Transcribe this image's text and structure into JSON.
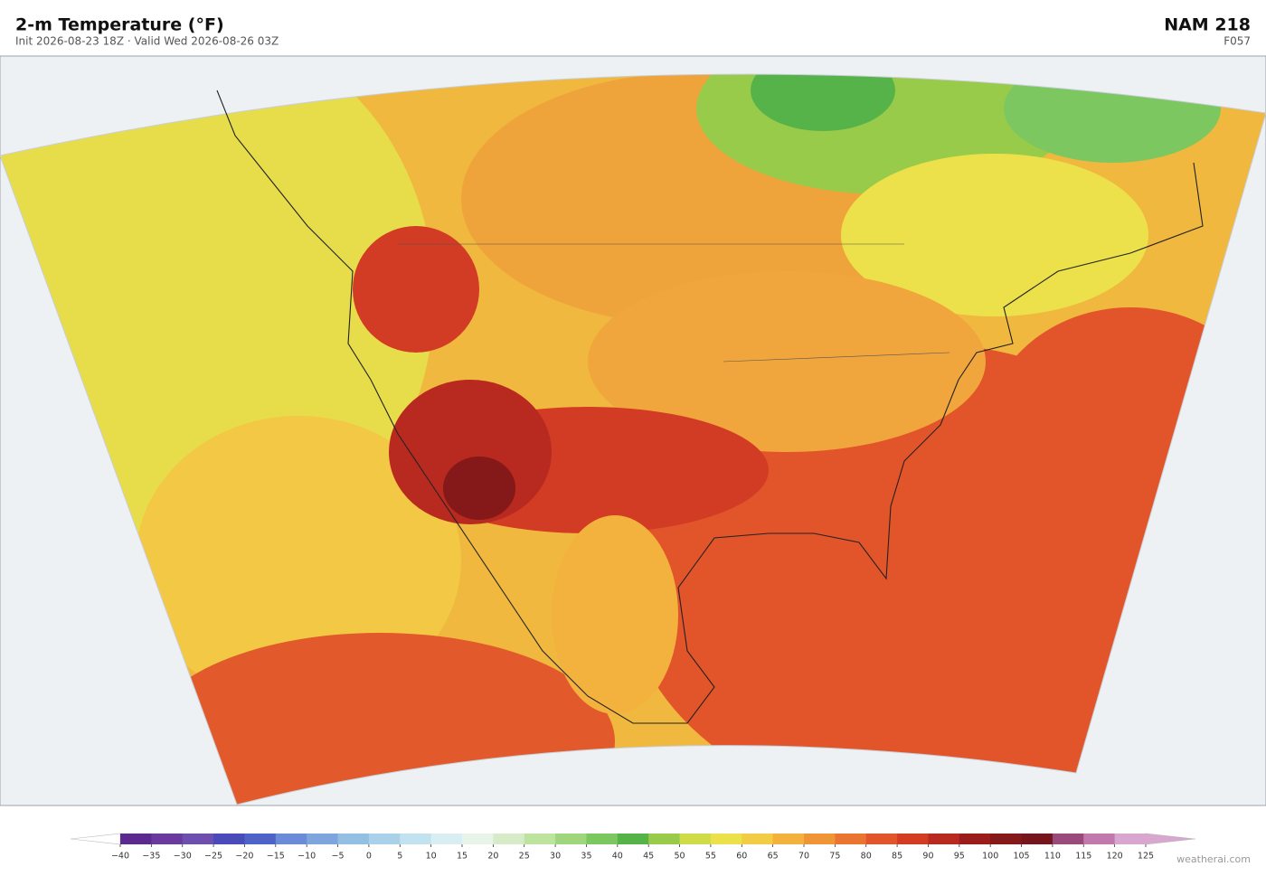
{
  "header": {
    "title": "2-m Temperature  (°F)",
    "subtitle": "Init 2026-08-23 18Z  ·  Valid Wed 2026-08-26 03Z",
    "model": "NAM  218",
    "forecast": "F057"
  },
  "colorbar": {
    "ticks": [
      {
        "value": -40,
        "label": "−40"
      },
      {
        "value": -35,
        "label": "−35"
      },
      {
        "value": -30,
        "label": "−30"
      },
      {
        "value": -25,
        "label": "−25"
      },
      {
        "value": -20,
        "label": "−20"
      },
      {
        "value": -15,
        "label": "−15"
      },
      {
        "value": -10,
        "label": "−10"
      },
      {
        "value": -5,
        "label": "−5"
      },
      0,
      5,
      10,
      15,
      20,
      25,
      30,
      35,
      40,
      45,
      50,
      55,
      60,
      65,
      70,
      75,
      80,
      85,
      90,
      95,
      100,
      105,
      110,
      115,
      120,
      125
    ],
    "colors": [
      "#5b2a8c",
      "#6a3a9c",
      "#6e4fb0",
      "#4a4ab8",
      "#4f62c8",
      "#6b8ad8",
      "#7ea5dc",
      "#93c0e2",
      "#a9d2ea",
      "#c2e2ef",
      "#d8eef2",
      "#e6f4ea",
      "#d6ecc8",
      "#bde39e",
      "#9fd67d",
      "#7cc760",
      "#56b34a",
      "#98cb4a",
      "#cfdc4a",
      "#ece14a",
      "#f3cc45",
      "#f3b23e",
      "#ef9538",
      "#ea7532",
      "#e2552a",
      "#d23c24",
      "#b82a20",
      "#9a1c1c",
      "#851818",
      "#74161c",
      "#9a4a7a",
      "#c27aae",
      "#d8a6cf"
    ]
  },
  "footer": {
    "credit": "weatherai.com"
  }
}
